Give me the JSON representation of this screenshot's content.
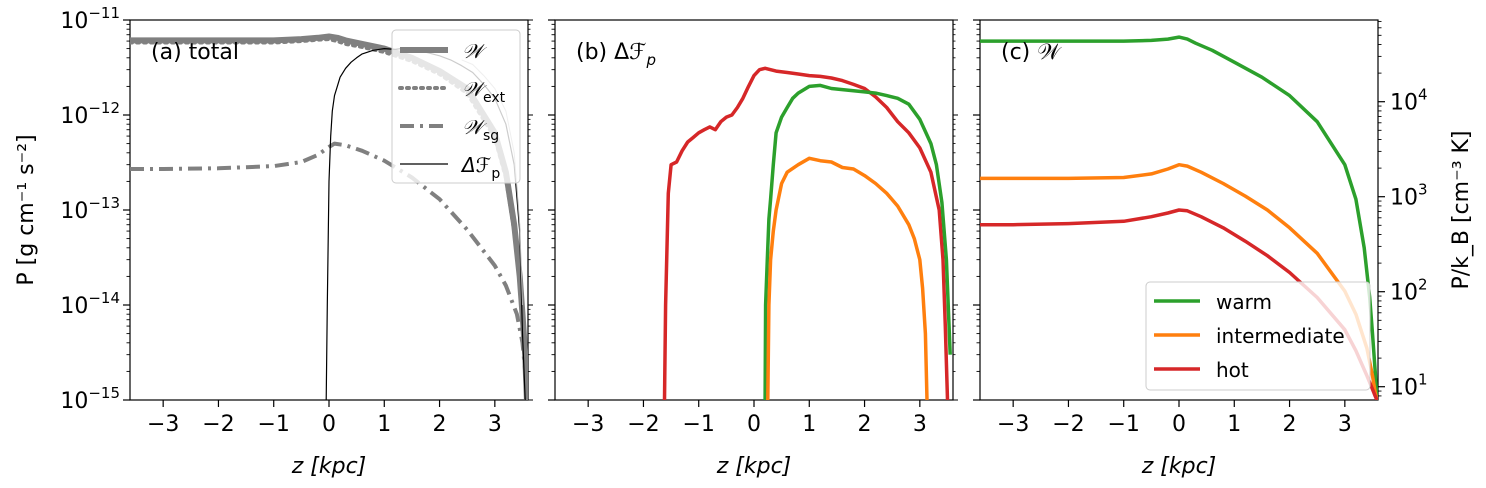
{
  "figure": {
    "ylabel_left": "P [g cm⁻¹ s⁻²]",
    "ylabel_right": "P/k_B [cm⁻³ K]"
  },
  "chart_data": [
    {
      "type": "line",
      "panel_label": "(a) total",
      "xlabel": "z [kpc]",
      "ylabel": "P [g cm⁻¹ s⁻²]",
      "xlim": [
        -3.6,
        3.6
      ],
      "ylim": [
        1e-15,
        1e-11
      ],
      "yscale": "log",
      "xticks": [
        -3,
        -2,
        -1,
        0,
        1,
        2,
        3
      ],
      "yticks": [
        1e-15,
        1e-14,
        1e-13,
        1e-12,
        1e-11
      ],
      "ytick_labels": [
        {
          "base": "10",
          "exp": "−15"
        },
        {
          "base": "10",
          "exp": "−14"
        },
        {
          "base": "10",
          "exp": "−13"
        },
        {
          "base": "10",
          "exp": "−12"
        },
        {
          "base": "10",
          "exp": "−11"
        }
      ],
      "legend_position": "top-right",
      "legend": [
        {
          "main": "𝒲",
          "sub": "",
          "color": "#808080",
          "width": 6,
          "dash": "solid"
        },
        {
          "main": "𝒲",
          "sub": "ext",
          "color": "#808080",
          "width": 4,
          "dash": "dotted"
        },
        {
          "main": "𝒲",
          "sub": "sg",
          "color": "#808080",
          "width": 4,
          "dash": "dashdot"
        },
        {
          "main": "Δℱ",
          "sub": "p",
          "color": "#000000",
          "width": 1.2,
          "dash": "solid"
        }
      ],
      "series": [
        {
          "name": "𝒲",
          "color": "#808080",
          "width": 6,
          "dash": "solid",
          "x": [
            -3.6,
            -3.0,
            -2.0,
            -1.0,
            -0.5,
            -0.2,
            0.0,
            0.15,
            0.3,
            0.6,
            1.0,
            1.5,
            2.0,
            2.5,
            3.0,
            3.2,
            3.35,
            3.45,
            3.5,
            3.55,
            3.58
          ],
          "y": [
            6.1e-12,
            6.1e-12,
            6.1e-12,
            6.1e-12,
            6.3e-12,
            6.5e-12,
            6.7e-12,
            6.5e-12,
            6.1e-12,
            5.6e-12,
            5e-12,
            4e-12,
            2.9e-12,
            1.9e-12,
            6.5e-13,
            2.5e-13,
            7e-14,
            2e-14,
            8e-15,
            3e-15,
            1e-15
          ]
        },
        {
          "name": "𝒲_ext",
          "color": "#808080",
          "width": 4,
          "dash": "dotted",
          "x": [
            -3.6,
            -3.0,
            -2.0,
            -1.0,
            -0.5,
            -0.2,
            0.0,
            0.15,
            0.3,
            0.6,
            1.0,
            1.5,
            2.0,
            2.5,
            3.0,
            3.2,
            3.35,
            3.45,
            3.5,
            3.55,
            3.58
          ],
          "y": [
            5.8e-12,
            5.8e-12,
            5.8e-12,
            5.8e-12,
            6e-12,
            6.2e-12,
            6.3e-12,
            6e-12,
            5.6e-12,
            5.2e-12,
            4.6e-12,
            3.7e-12,
            2.7e-12,
            1.7e-12,
            5.8e-13,
            2.2e-13,
            6e-14,
            1.8e-14,
            7e-15,
            2.5e-15,
            1e-15
          ]
        },
        {
          "name": "𝒲_sg",
          "color": "#808080",
          "width": 4,
          "dash": "dashdot",
          "x": [
            -3.6,
            -3.0,
            -2.0,
            -1.0,
            -0.5,
            -0.2,
            0.0,
            0.1,
            0.3,
            0.6,
            1.0,
            1.5,
            2.0,
            2.5,
            3.0,
            3.2,
            3.4,
            3.5,
            3.55,
            3.58
          ],
          "y": [
            2.7e-13,
            2.7e-13,
            2.75e-13,
            2.9e-13,
            3.2e-13,
            3.8e-13,
            4.6e-13,
            5e-13,
            4.8e-13,
            4.2e-13,
            3.3e-13,
            2.2e-13,
            1.3e-13,
            6.2e-14,
            2.6e-14,
            1.6e-14,
            8e-15,
            4e-15,
            2e-15,
            1e-15
          ]
        },
        {
          "name": "Δℱ_p",
          "color": "#000000",
          "width": 1.2,
          "dash": "solid",
          "x": [
            -0.05,
            -0.03,
            0.0,
            0.03,
            0.06,
            0.1,
            0.15,
            0.2,
            0.3,
            0.4,
            0.5,
            0.6,
            0.8,
            1.0,
            1.2,
            1.4,
            1.6,
            1.8,
            2.0,
            2.2,
            2.4,
            2.6,
            2.8,
            3.0,
            3.2,
            3.35,
            3.45,
            3.5,
            3.55
          ],
          "y": [
            1e-15,
            1e-14,
            2e-13,
            6e-13,
            1.1e-12,
            1.6e-12,
            2e-12,
            2.5e-12,
            3.1e-12,
            3.6e-12,
            4e-12,
            4.4e-12,
            4.8e-12,
            5e-12,
            4.9e-12,
            5.1e-12,
            4.8e-12,
            4.5e-12,
            4.2e-12,
            3.8e-12,
            3.3e-12,
            2.8e-12,
            2.1e-12,
            1.5e-12,
            8e-13,
            3e-13,
            6e-14,
            5e-15,
            1e-15
          ]
        },
        {
          "name": "",
          "color": "#b0b0b0",
          "width": 1,
          "dash": "solid",
          "x": [
            2.4,
            2.6,
            2.8,
            3.0,
            3.2,
            3.35,
            3.45,
            3.5
          ],
          "y": [
            3.8e-12,
            3.4e-12,
            2.6e-12,
            1.9e-12,
            1.1e-12,
            4e-13,
            7e-14,
            1e-14
          ]
        }
      ]
    },
    {
      "type": "line",
      "panel_label": "(b) Δℱ",
      "panel_label_sub": "p",
      "xlabel": "z [kpc]",
      "xlim": [
        -3.6,
        3.6
      ],
      "ylim": [
        1e-15,
        1e-11
      ],
      "yscale": "log",
      "xticks": [
        -3,
        -2,
        -1,
        0,
        1,
        2,
        3
      ],
      "series": [
        {
          "name": "",
          "color": "#d62728",
          "width": 3.5,
          "dash": "solid",
          "x": [
            -1.62,
            -1.6,
            -1.55,
            -1.5,
            -1.4,
            -1.3,
            -1.2,
            -1.1,
            -1.0,
            -0.9,
            -0.8,
            -0.7,
            -0.6,
            -0.5,
            -0.4,
            -0.3,
            -0.2,
            -0.1,
            0.0,
            0.1,
            0.2,
            0.4,
            0.6,
            0.8,
            1.0,
            1.2,
            1.4,
            1.6,
            1.8,
            2.0,
            2.2,
            2.4,
            2.6,
            2.8,
            3.0,
            3.2,
            3.35,
            3.42,
            3.46,
            3.5
          ],
          "y": [
            1e-15,
            1e-14,
            1.5e-13,
            3e-13,
            3.2e-13,
            4.2e-13,
            5.2e-13,
            5.8e-13,
            6.5e-13,
            7e-13,
            7.5e-13,
            7e-13,
            8.5e-13,
            9.5e-13,
            1e-12,
            1.2e-12,
            1.5e-12,
            2e-12,
            2.6e-12,
            3e-12,
            3.1e-12,
            2.9e-12,
            2.8e-12,
            2.7e-12,
            2.6e-12,
            2.55e-12,
            2.45e-12,
            2.3e-12,
            2.1e-12,
            1.9e-12,
            1.55e-12,
            1.2e-12,
            8.5e-13,
            6.5e-13,
            4.5e-13,
            2.5e-13,
            1e-13,
            3e-14,
            6e-15,
            1e-15
          ]
        },
        {
          "name": "",
          "color": "#2ca02c",
          "width": 3.5,
          "dash": "solid",
          "x": [
            0.2,
            0.21,
            0.24,
            0.27,
            0.3,
            0.35,
            0.4,
            0.5,
            0.6,
            0.7,
            0.8,
            1.0,
            1.2,
            1.4,
            1.6,
            1.8,
            2.0,
            2.2,
            2.4,
            2.6,
            2.8,
            3.0,
            3.2,
            3.3,
            3.4,
            3.48,
            3.55
          ],
          "y": [
            1e-15,
            1e-14,
            3e-14,
            8e-14,
            1.3e-13,
            3e-13,
            6.5e-13,
            9.5e-13,
            1.2e-12,
            1.5e-12,
            1.7e-12,
            2e-12,
            2.05e-12,
            1.9e-12,
            1.85e-12,
            1.8e-12,
            1.75e-12,
            1.7e-12,
            1.6e-12,
            1.5e-12,
            1.3e-12,
            9e-13,
            5e-13,
            3e-13,
            1.2e-13,
            3e-14,
            3e-15
          ]
        },
        {
          "name": "",
          "color": "#ff7f0e",
          "width": 3.5,
          "dash": "solid",
          "x": [
            0.25,
            0.27,
            0.3,
            0.35,
            0.4,
            0.5,
            0.6,
            0.8,
            1.0,
            1.2,
            1.4,
            1.6,
            1.8,
            2.0,
            2.2,
            2.4,
            2.6,
            2.8,
            2.9,
            3.0,
            3.05,
            3.1,
            3.13
          ],
          "y": [
            1e-15,
            1e-14,
            3e-14,
            6e-14,
            1e-13,
            1.9e-13,
            2.5e-13,
            3e-13,
            3.5e-13,
            3.3e-13,
            3.2e-13,
            2.8e-13,
            2.7e-13,
            2.3e-13,
            1.9e-13,
            1.5e-13,
            1.1e-13,
            7e-14,
            5e-14,
            3e-14,
            1.5e-14,
            5e-15,
            1e-15
          ]
        }
      ]
    },
    {
      "type": "line",
      "panel_label": "(c) 𝒲",
      "xlabel": "z [kpc]",
      "ylabel": "P/k_B [cm⁻³ K]",
      "xlim": [
        -3.6,
        3.6
      ],
      "ylim": [
        1e-15,
        1e-11
      ],
      "yscale": "log",
      "xticks": [
        -3,
        -2,
        -1,
        0,
        1,
        2,
        3
      ],
      "right_axis": {
        "ticks": [
          10,
          100,
          1000,
          10000
        ],
        "tick_labels": [
          {
            "base": "10",
            "exp": "1"
          },
          {
            "base": "10",
            "exp": "2"
          },
          {
            "base": "10",
            "exp": "3"
          },
          {
            "base": "10",
            "exp": "4"
          }
        ],
        "conversion_g_cm1_s2_per_K_cm3": 1.38e-16
      },
      "legend_position": "lower-right",
      "legend": [
        {
          "label": "warm",
          "color": "#2ca02c"
        },
        {
          "label": "intermediate",
          "color": "#ff7f0e"
        },
        {
          "label": "hot",
          "color": "#d62728"
        }
      ],
      "series": [
        {
          "name": "warm",
          "color": "#2ca02c",
          "width": 3.5,
          "dash": "solid",
          "x": [
            -3.6,
            -3.0,
            -2.0,
            -1.0,
            -0.5,
            -0.2,
            0.0,
            0.15,
            0.3,
            0.6,
            1.0,
            1.5,
            2.0,
            2.5,
            3.0,
            3.2,
            3.35,
            3.45,
            3.5,
            3.55,
            3.58
          ],
          "y": [
            6e-12,
            6e-12,
            6e-12,
            6e-12,
            6.1e-12,
            6.3e-12,
            6.6e-12,
            6.3e-12,
            5.7e-12,
            4.8e-12,
            3.6e-12,
            2.5e-12,
            1.6e-12,
            8.5e-13,
            3e-13,
            1.3e-13,
            4e-14,
            1.2e-14,
            5e-15,
            2e-15,
            1e-15
          ]
        },
        {
          "name": "intermediate",
          "color": "#ff7f0e",
          "width": 3.5,
          "dash": "solid",
          "x": [
            -3.6,
            -3.0,
            -2.0,
            -1.0,
            -0.5,
            -0.2,
            0.0,
            0.15,
            0.4,
            0.8,
            1.2,
            1.6,
            2.0,
            2.5,
            3.0,
            3.2,
            3.4,
            3.5,
            3.55,
            3.58
          ],
          "y": [
            2.15e-13,
            2.15e-13,
            2.15e-13,
            2.2e-13,
            2.4e-13,
            2.7e-13,
            3e-13,
            2.9e-13,
            2.5e-13,
            1.9e-13,
            1.4e-13,
            1e-13,
            6.5e-14,
            3.5e-14,
            1.4e-14,
            8e-15,
            3.5e-15,
            1.8e-15,
            1.2e-15,
            1e-15
          ]
        },
        {
          "name": "hot",
          "color": "#d62728",
          "width": 3.5,
          "dash": "solid",
          "x": [
            -3.6,
            -3.0,
            -2.0,
            -1.0,
            -0.5,
            -0.2,
            0.0,
            0.15,
            0.4,
            0.8,
            1.2,
            1.6,
            2.0,
            2.5,
            3.0,
            3.2,
            3.4,
            3.5,
            3.55,
            3.58
          ],
          "y": [
            7e-14,
            7e-14,
            7.2e-14,
            7.6e-14,
            8.5e-14,
            9.3e-14,
            1e-13,
            9.8e-14,
            8.5e-14,
            6.5e-14,
            4.7e-14,
            3.3e-14,
            2.2e-14,
            1.2e-14,
            5.5e-15,
            3.3e-15,
            1.8e-15,
            1.3e-15,
            1.1e-15,
            1e-15
          ]
        }
      ]
    }
  ]
}
